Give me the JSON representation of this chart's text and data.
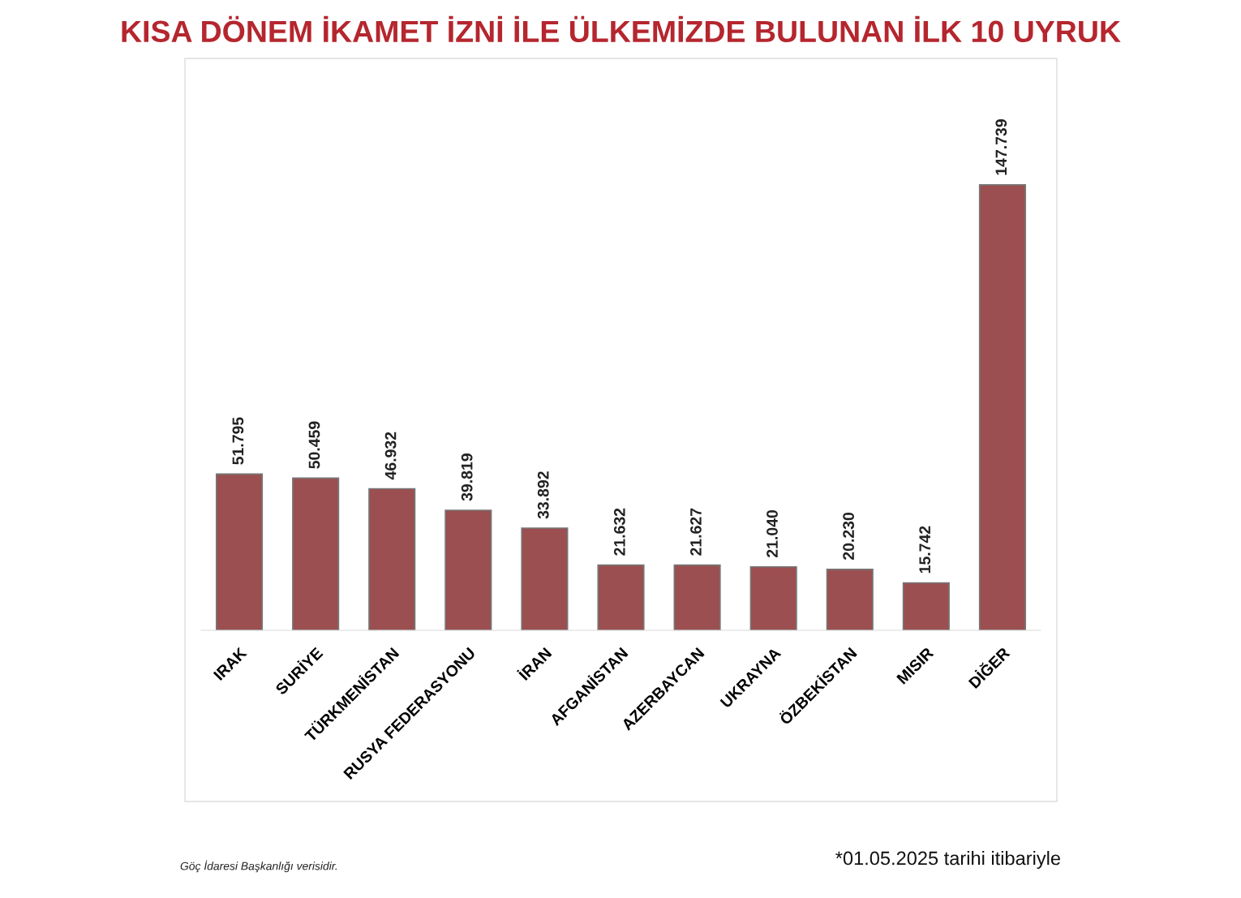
{
  "chart_data": {
    "type": "bar",
    "title": "KISA DÖNEM İKAMET İZNİ İLE ÜLKEMİZDE BULUNAN İLK 10 UYRUK",
    "categories": [
      "IRAK",
      "SURİYE",
      "TÜRKMENİSTAN",
      "RUSYA FEDERASYONU",
      "İRAN",
      "AFGANİSTAN",
      "AZERBAYCAN",
      "UKRAYNA",
      "ÖZBEKİSTAN",
      "MISIR",
      "DİĞER"
    ],
    "values": [
      51795,
      50459,
      46932,
      39819,
      33892,
      21632,
      21627,
      21040,
      20230,
      15742,
      147739
    ],
    "value_labels": [
      "51.795",
      "50.459",
      "46.932",
      "39.819",
      "33.892",
      "21.632",
      "21.627",
      "21.040",
      "20.230",
      "15.742",
      "147.739"
    ],
    "color": "#9b4f50",
    "annotations": [
      "Göç İdaresi Başkanlığı verisidir.",
      "*01.05.2025 tarihi itibariyle"
    ]
  }
}
